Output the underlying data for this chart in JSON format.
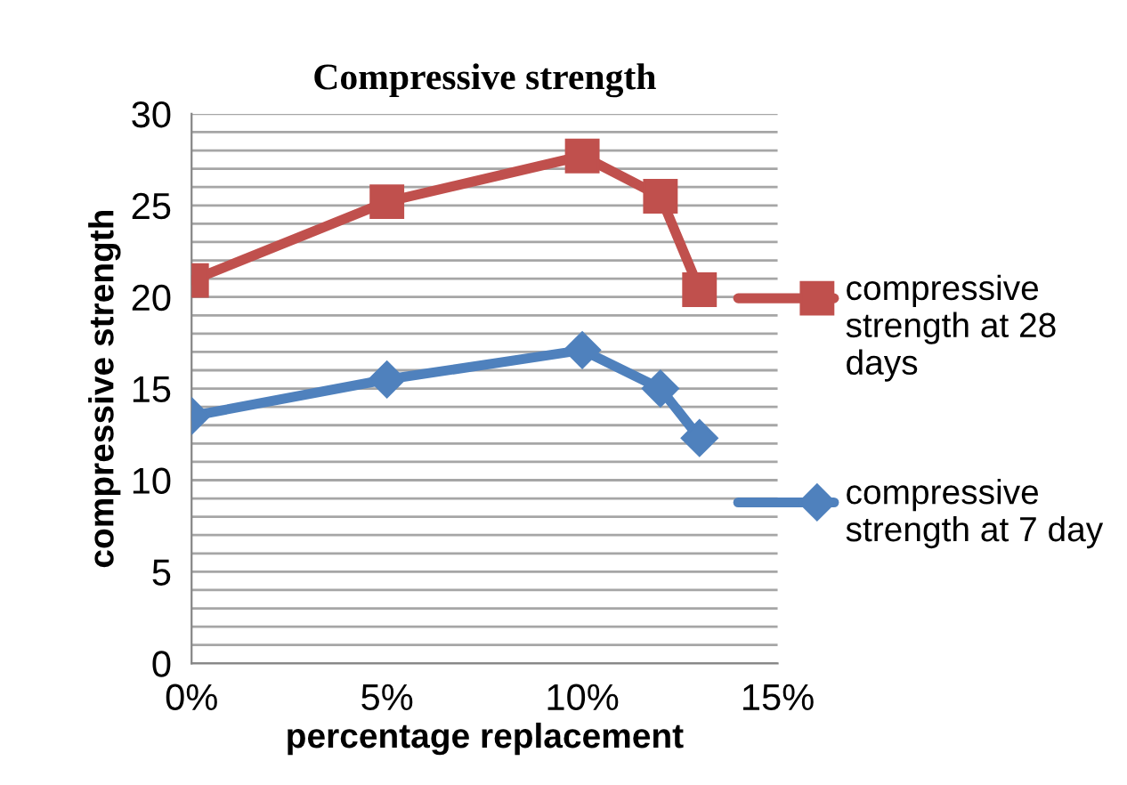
{
  "chart_data": {
    "type": "line",
    "title": "Compressive strength",
    "xlabel": "percentage replacement",
    "ylabel": "compressive strength",
    "x": [
      0,
      5,
      10,
      12,
      13
    ],
    "series": [
      {
        "name": "compressive strength at 28 days",
        "color": "#c0504d",
        "marker": "square",
        "values": [
          20.9,
          25.2,
          27.7,
          25.5,
          20.4
        ]
      },
      {
        "name": "compressive strength at 7 day",
        "color": "#4f81bd",
        "marker": "diamond",
        "values": [
          13.5,
          15.5,
          17.1,
          15.0,
          12.3
        ]
      }
    ],
    "xlim": [
      0,
      15
    ],
    "xticks": [
      {
        "value": 0,
        "label": "0%"
      },
      {
        "value": 5,
        "label": "5%"
      },
      {
        "value": 10,
        "label": "10%"
      },
      {
        "value": 15,
        "label": "15%"
      }
    ],
    "ylim": [
      0,
      30
    ],
    "yticks": [
      0,
      {
        "value": 1,
        "label": null
      },
      {
        "value": 2,
        "label": null
      },
      {
        "value": 3,
        "label": null
      },
      {
        "value": 4,
        "label": null
      },
      5,
      {
        "value": 6,
        "label": null
      },
      {
        "value": 7,
        "label": null
      },
      {
        "value": 8,
        "label": null
      },
      {
        "value": 9,
        "label": null
      },
      10,
      {
        "value": 11,
        "label": null
      },
      {
        "value": 12,
        "label": null
      },
      {
        "value": 13,
        "label": null
      },
      {
        "value": 14,
        "label": null
      },
      15,
      {
        "value": 16,
        "label": null
      },
      {
        "value": 17,
        "label": null
      },
      {
        "value": 18,
        "label": null
      },
      {
        "value": 19,
        "label": null
      },
      20,
      {
        "value": 21,
        "label": null
      },
      {
        "value": 22,
        "label": null
      },
      {
        "value": 23,
        "label": null
      },
      {
        "value": 24,
        "label": null
      },
      25,
      {
        "value": 26,
        "label": null
      },
      {
        "value": 27,
        "label": null
      },
      {
        "value": 28,
        "label": null
      },
      {
        "value": 29,
        "label": null
      },
      30
    ],
    "grid": "y",
    "legend": "right",
    "line_style": "solid"
  }
}
